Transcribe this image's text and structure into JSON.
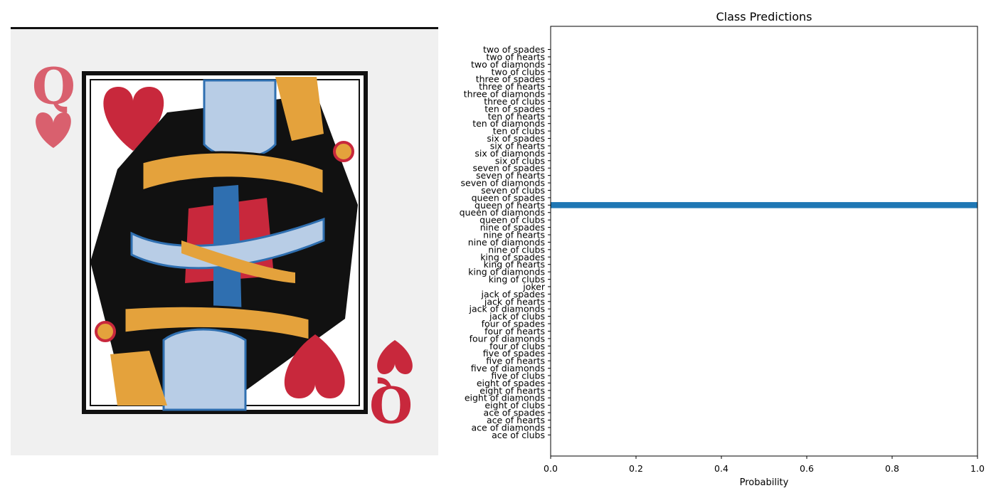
{
  "image_panel": {
    "subject": "queen of hearts playing card",
    "card_rank": "Q",
    "colors": {
      "red": "#c8283c",
      "pink": "#d9606e",
      "blue": "#2f6fb0",
      "light_blue": "#b8cde6",
      "gold": "#e4a23c",
      "black": "#111111",
      "paper": "#f2f2f2"
    }
  },
  "chart_data": {
    "type": "bar",
    "orientation": "horizontal",
    "title": "Class Predictions",
    "xlabel": "Probability",
    "ylabel": "",
    "xlim": [
      0,
      1
    ],
    "xticks": [
      "0.0",
      "0.2",
      "0.4",
      "0.6",
      "0.8",
      "1.0"
    ],
    "bar_color": "#1f77b4",
    "grid": false,
    "legend": "none",
    "categories": [
      "two of spades",
      "two of hearts",
      "two of diamonds",
      "two of clubs",
      "three of spades",
      "three of hearts",
      "three of diamonds",
      "three of clubs",
      "ten of spades",
      "ten of hearts",
      "ten of diamonds",
      "ten of clubs",
      "six of spades",
      "six of hearts",
      "six of diamonds",
      "six of clubs",
      "seven of spades",
      "seven of hearts",
      "seven of diamonds",
      "seven of clubs",
      "queen of spades",
      "queen of hearts",
      "queen of diamonds",
      "queen of clubs",
      "nine of spades",
      "nine of hearts",
      "nine of diamonds",
      "nine of clubs",
      "king of spades",
      "king of hearts",
      "king of diamonds",
      "king of clubs",
      "joker",
      "jack of spades",
      "jack of hearts",
      "jack of diamonds",
      "jack of clubs",
      "four of spades",
      "four of hearts",
      "four of diamonds",
      "four of clubs",
      "five of spades",
      "five of hearts",
      "five of diamonds",
      "five of clubs",
      "eight of spades",
      "eight of hearts",
      "eight of diamonds",
      "eight of clubs",
      "ace of spades",
      "ace of hearts",
      "ace of diamonds",
      "ace of clubs"
    ],
    "values": [
      0,
      0,
      0,
      0,
      0,
      0,
      0,
      0,
      0,
      0,
      0,
      0,
      0,
      0,
      0,
      0,
      0,
      0,
      0,
      0,
      0,
      1.0,
      0,
      0,
      0,
      0,
      0,
      0,
      0,
      0,
      0,
      0,
      0,
      0,
      0,
      0,
      0,
      0,
      0,
      0,
      0,
      0,
      0,
      0,
      0,
      0,
      0,
      0,
      0,
      0,
      0,
      0,
      0
    ]
  }
}
